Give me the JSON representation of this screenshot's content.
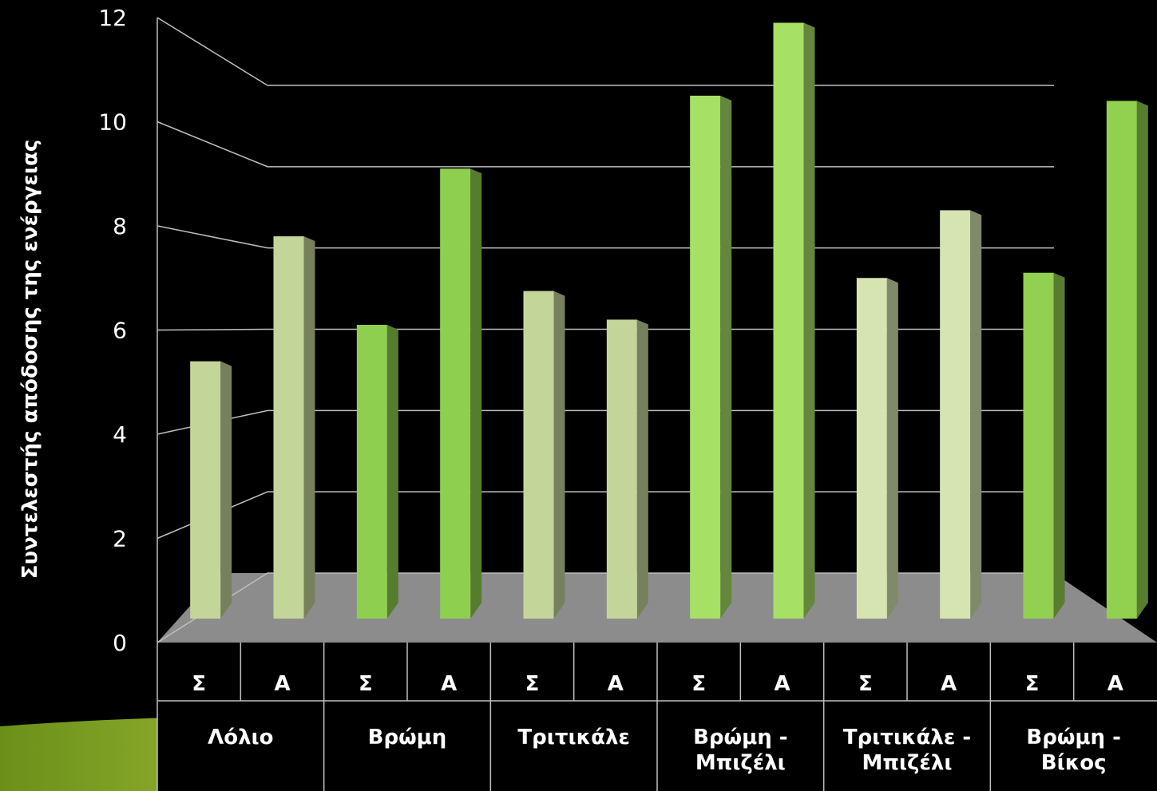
{
  "chart_data": {
    "type": "bar",
    "y_axis_label": "Συντελεστής απόδοσης της ενέργειας",
    "categories": [
      "Σ",
      "Α",
      "Σ",
      "Α",
      "Σ",
      "Α",
      "Σ",
      "Α",
      "Σ",
      "Α",
      "Σ",
      "Α"
    ],
    "groups": [
      "Λόλιο",
      "Βρώμη",
      "Τριτικάλε",
      "Βρώμη - Μπιζέλι",
      "Τριτικάλε - Μπιζέλι",
      "Βρώμη - Βίκος"
    ],
    "values": [
      5.4,
      7.8,
      6.1,
      9.1,
      6.75,
      6.2,
      10.5,
      11.9,
      7.0,
      8.3,
      7.1,
      10.4
    ],
    "colors": [
      "#c4d59a",
      "#c4d59a",
      "#8fcf4f",
      "#8fcf4f",
      "#c4d59a",
      "#c4d59a",
      "#a6e065",
      "#a6e065",
      "#d6e4b2",
      "#d6e4b2",
      "#92d050",
      "#92d050"
    ],
    "ylim": [
      0,
      12
    ],
    "yticks": [
      0,
      2,
      4,
      6,
      8,
      10,
      12
    ],
    "grid": true
  }
}
